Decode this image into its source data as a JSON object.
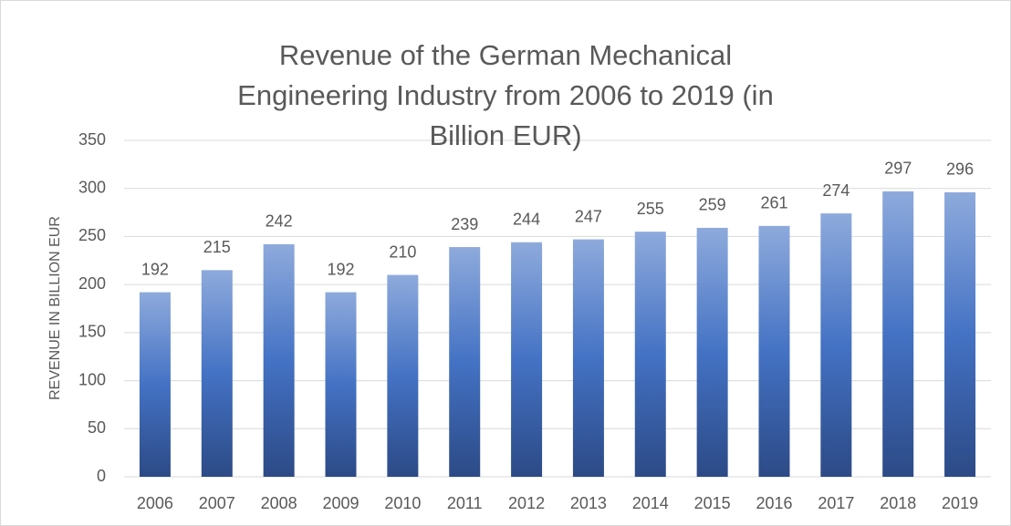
{
  "chart_data": {
    "type": "bar",
    "title": "Revenue of the German Mechanical Engineering Industry from 2006 to 2019 (in Billion EUR)",
    "y_label": "REVENUE IN BILLION EUR",
    "categories": [
      "2006",
      "2007",
      "2008",
      "2009",
      "2010",
      "2011",
      "2012",
      "2013",
      "2014",
      "2015",
      "2016",
      "2017",
      "2018",
      "2019"
    ],
    "values": [
      192,
      215,
      242,
      192,
      210,
      239,
      244,
      247,
      255,
      259,
      261,
      274,
      297,
      296
    ],
    "color": "#4472c4",
    "ylim": [
      0,
      350
    ],
    "yticks": [
      0,
      50,
      100,
      150,
      200,
      250,
      300,
      350
    ],
    "grid": true
  }
}
